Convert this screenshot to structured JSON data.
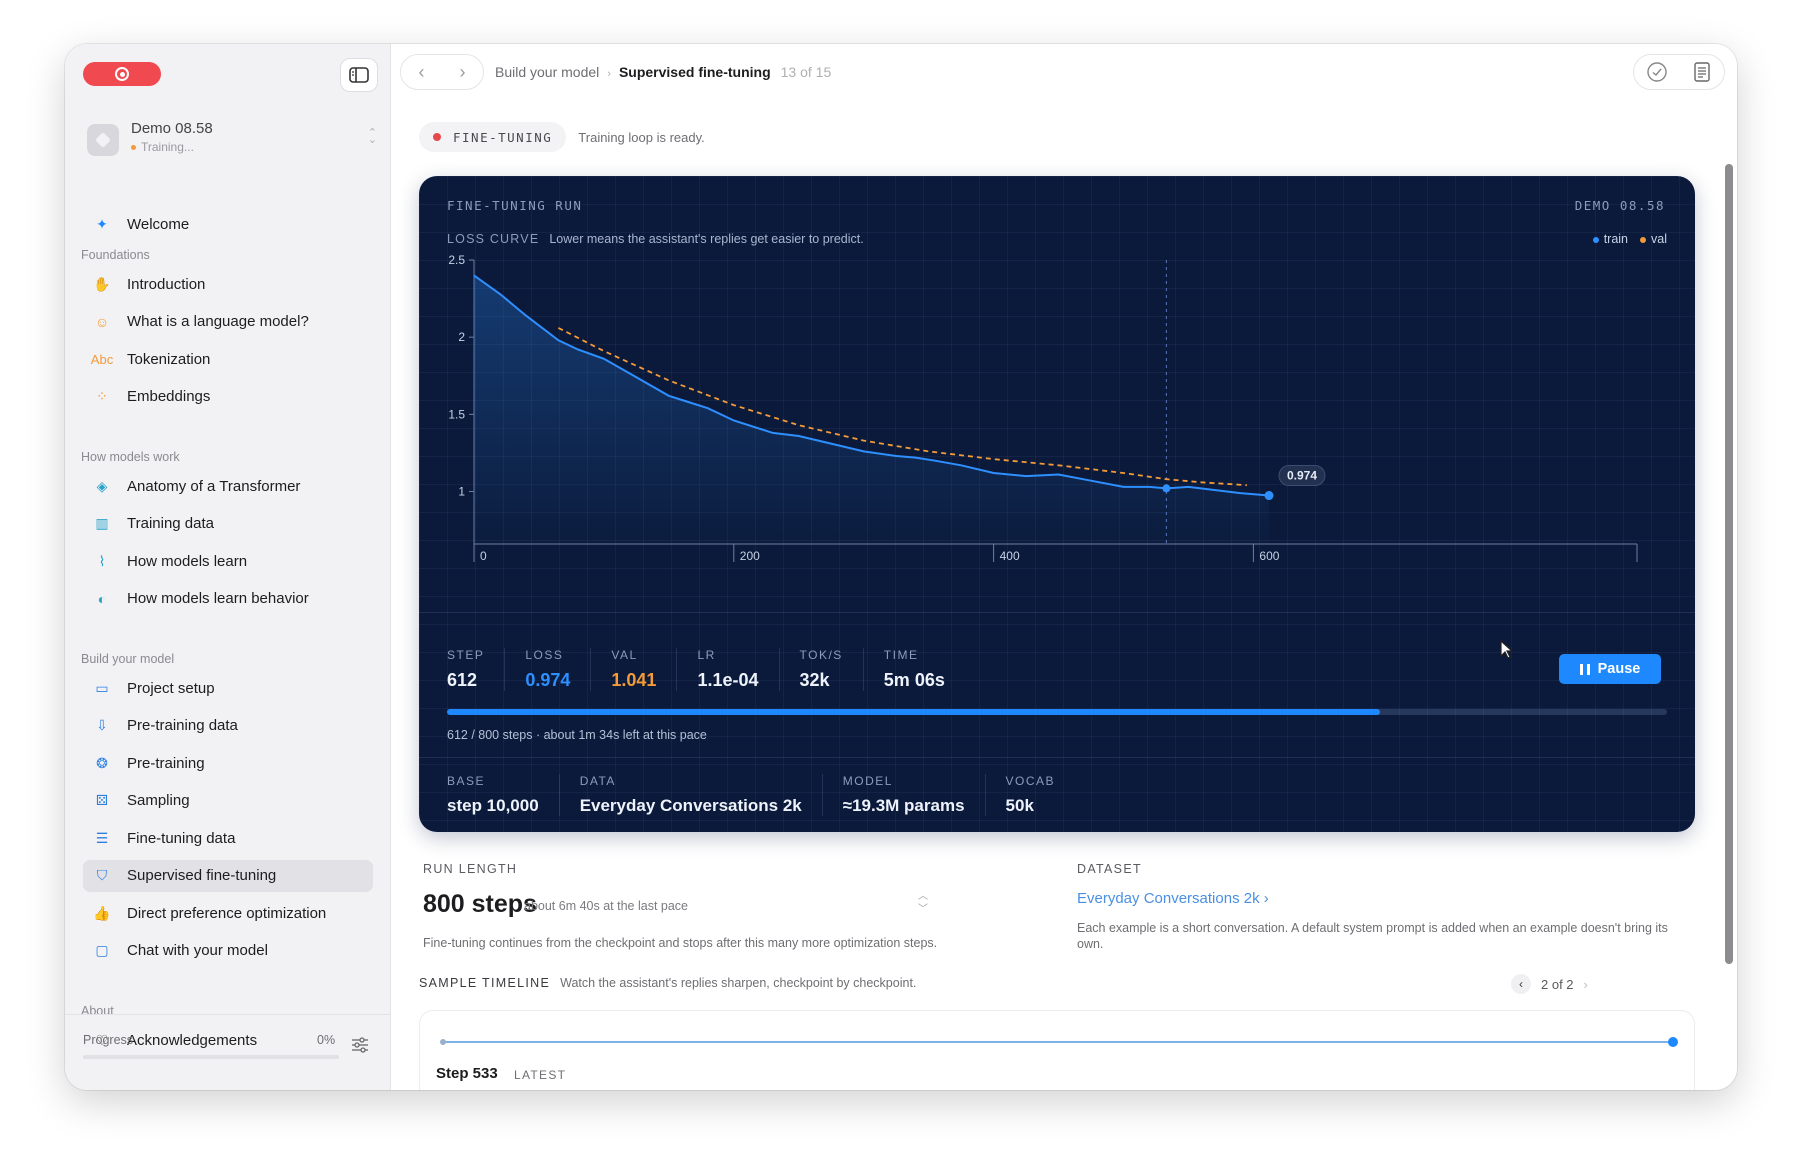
{
  "sidebar": {
    "project": {
      "name": "Demo 08.58",
      "status": "Training..."
    },
    "welcome": {
      "label": "Welcome",
      "icon": "sparkle-icon"
    },
    "sections": [
      {
        "title": "Foundations",
        "items": [
          {
            "label": "Introduction",
            "icon": "hand-wave-icon"
          },
          {
            "label": "What is a language model?",
            "icon": "head-icon"
          },
          {
            "label": "Tokenization",
            "icon": "abc-icon"
          },
          {
            "label": "Embeddings",
            "icon": "dots-icon"
          }
        ]
      },
      {
        "title": "How models work",
        "items": [
          {
            "label": "Anatomy of a Transformer",
            "icon": "layers-icon"
          },
          {
            "label": "Training data",
            "icon": "bar-chart-icon"
          },
          {
            "label": "How models learn",
            "icon": "line-chart-icon"
          },
          {
            "label": "How models learn behavior",
            "icon": "masks-icon"
          }
        ]
      },
      {
        "title": "Build your model",
        "items": [
          {
            "label": "Project setup",
            "icon": "folder-icon"
          },
          {
            "label": "Pre-training data",
            "icon": "tray-icon"
          },
          {
            "label": "Pre-training",
            "icon": "brain-icon"
          },
          {
            "label": "Sampling",
            "icon": "dice-icon"
          },
          {
            "label": "Fine-tuning data",
            "icon": "list-icon"
          },
          {
            "label": "Supervised fine-tuning",
            "icon": "graduation-cap-icon",
            "active": true
          },
          {
            "label": "Direct preference optimization",
            "icon": "thumbs-up-icon"
          },
          {
            "label": "Chat with your model",
            "icon": "chat-icon"
          }
        ]
      },
      {
        "title": "About",
        "items": [
          {
            "label": "Acknowledgements",
            "icon": "heart-icon"
          }
        ]
      }
    ],
    "progress": {
      "label": "Progress",
      "value": "0%"
    }
  },
  "topbar": {
    "breadcrumb_parent": "Build your model",
    "breadcrumb_current": "Supervised fine-tuning",
    "page_count": "13 of 15"
  },
  "phase": {
    "badge": "FINE-TUNING",
    "text": "Training loop is ready."
  },
  "panel": {
    "title": "FINE-TUNING RUN",
    "demo": "DEMO 08.58",
    "loss_curve_label": "LOSS CURVE",
    "loss_curve_desc": "Lower means the assistant's replies get easier to predict.",
    "tooltip": "0.974",
    "stats": [
      {
        "label": "STEP",
        "value": "612",
        "color": "#eef2fa"
      },
      {
        "label": "LOSS",
        "value": "0.974",
        "color": "#2e8fff"
      },
      {
        "label": "VAL",
        "value": "1.041",
        "color": "#f29b38"
      },
      {
        "label": "LR",
        "value": "1.1e-04",
        "color": "#eef2fa"
      },
      {
        "label": "TOK/S",
        "value": "32k",
        "color": "#eef2fa"
      },
      {
        "label": "TIME",
        "value": "5m 06s",
        "color": "#eef2fa"
      }
    ],
    "pause_label": "Pause",
    "run_progress": 0.765,
    "run_note": "612 / 800 steps · about 1m 34s left at this pace",
    "meta": [
      {
        "label": "BASE",
        "value": "step 10,000"
      },
      {
        "label": "DATA",
        "value": "Everyday Conversations 2k"
      },
      {
        "label": "MODEL",
        "value": "≈19.3M params"
      },
      {
        "label": "VOCAB",
        "value": "50k"
      }
    ]
  },
  "chart_data": {
    "type": "line",
    "title": "LOSS CURVE",
    "xlim": [
      0,
      800
    ],
    "ylim": [
      0.66,
      2.5
    ],
    "x_ticks": [
      0,
      200,
      400,
      600
    ],
    "y_ticks": [
      1,
      1.5,
      2,
      2.5
    ],
    "grid": true,
    "legend": "top-right",
    "marker_step": 533,
    "series": [
      {
        "name": "train",
        "color": "#2e8fff",
        "x": [
          0,
          20,
          40,
          65,
          80,
          100,
          125,
          150,
          165,
          180,
          200,
          230,
          250,
          270,
          300,
          325,
          340,
          355,
          375,
          400,
          425,
          450,
          475,
          500,
          520,
          533,
          550,
          570,
          590,
          612
        ],
        "y": [
          2.4,
          2.28,
          2.14,
          1.98,
          1.92,
          1.86,
          1.74,
          1.62,
          1.58,
          1.54,
          1.46,
          1.38,
          1.36,
          1.32,
          1.26,
          1.23,
          1.22,
          1.2,
          1.17,
          1.12,
          1.1,
          1.11,
          1.07,
          1.03,
          1.03,
          1.02,
          1.03,
          1.01,
          0.99,
          0.974
        ]
      },
      {
        "name": "val",
        "color": "#f29b38",
        "x": [
          65,
          100,
          150,
          200,
          250,
          300,
          350,
          400,
          450,
          500,
          533,
          560,
          595
        ],
        "y": [
          2.06,
          1.91,
          1.72,
          1.56,
          1.43,
          1.33,
          1.26,
          1.21,
          1.17,
          1.12,
          1.08,
          1.06,
          1.041
        ]
      }
    ]
  },
  "run_length": {
    "heading": "RUN LENGTH",
    "value": "800 steps",
    "sub": "about 6m 40s at the last pace",
    "note": "Fine-tuning continues from the checkpoint and stops after this many more optimization steps."
  },
  "dataset": {
    "heading": "DATASET",
    "value": "Everyday Conversations 2k",
    "note": "Each example is a short conversation. A default system prompt is added when an example doesn't bring its own."
  },
  "timeline": {
    "heading": "SAMPLE TIMELINE",
    "desc": "Watch the assistant's replies sharpen, checkpoint by checkpoint.",
    "pager": "2 of 2",
    "step": "Step 533",
    "badge": "LATEST"
  }
}
